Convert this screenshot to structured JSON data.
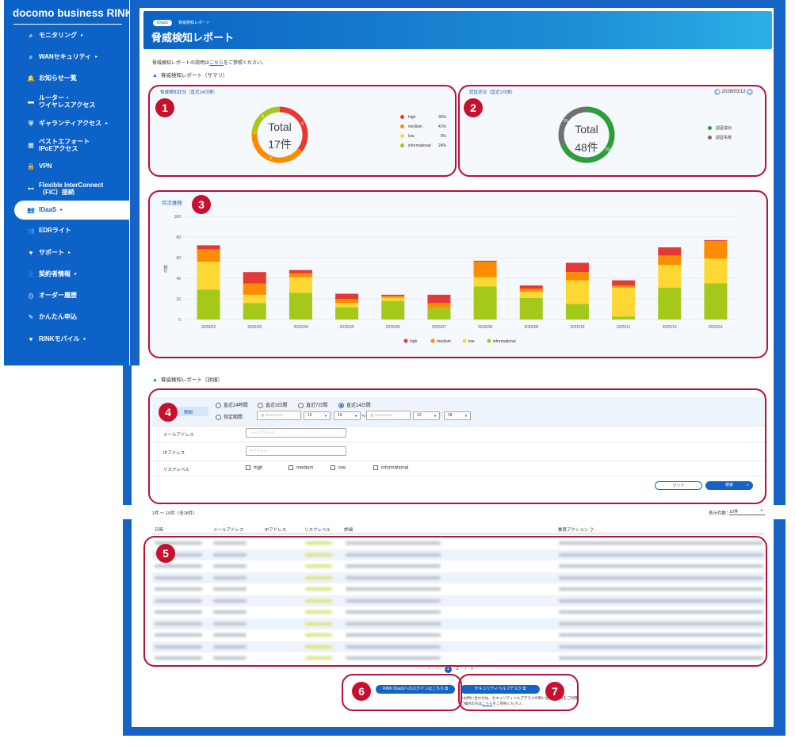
{
  "sidebar": {
    "brand": "docomo business RINK",
    "items": [
      {
        "icon": "search-icon",
        "glyph": "⌕",
        "label": "モニタリング",
        "arrow": "▸"
      },
      {
        "icon": "search-icon",
        "glyph": "⌕",
        "label": "WANセキュリティ",
        "arrow": "▸"
      },
      {
        "icon": "bell-icon",
        "glyph": "🔔",
        "label": "お知らせ一覧",
        "arrow": ""
      },
      {
        "icon": "router-icon",
        "glyph": "▬",
        "label": "ルーター・\nワイヤレスアクセス",
        "arrow": ""
      },
      {
        "icon": "shield-icon",
        "glyph": "⛨",
        "label": "ギャランティアクセス",
        "arrow": "▸"
      },
      {
        "icon": "network-icon",
        "glyph": "▦",
        "label": "ベストエフォート\nIPoEアクセス",
        "arrow": ""
      },
      {
        "icon": "lock-icon",
        "glyph": "🔒",
        "label": "VPN",
        "arrow": ""
      },
      {
        "icon": "connect-icon",
        "glyph": "⊷",
        "label": "Flexible InterConnect\n（FIC）接続",
        "arrow": ""
      },
      {
        "icon": "users-icon",
        "glyph": "👥",
        "label": "IDaaS",
        "arrow": "▸"
      },
      {
        "icon": "users-icon",
        "glyph": "👥",
        "label": "EDRライト",
        "arrow": ""
      },
      {
        "icon": "support-icon",
        "glyph": "♥",
        "label": "サポート",
        "arrow": "▸"
      },
      {
        "icon": "person-icon",
        "glyph": "👤",
        "label": "契約者情報",
        "arrow": "▸"
      },
      {
        "icon": "clock-icon",
        "glyph": "◷",
        "label": "オーダー履歴",
        "arrow": ""
      },
      {
        "icon": "edit-icon",
        "glyph": "✎",
        "label": "かんたん申込",
        "arrow": ""
      },
      {
        "icon": "mobile-icon",
        "glyph": "♥",
        "label": "RINKモバイル",
        "arrow": "▸"
      }
    ]
  },
  "header": {
    "chip": "IDaaS",
    "breadcrumb": "脅威検知レポート",
    "title": "脅威検知レポート"
  },
  "intro": {
    "prefix": "脅威検知レポートの説明は",
    "link": "こちら",
    "suffix": "をご参照ください。"
  },
  "summary": {
    "heading": "脅威検知レポート（サマリ）"
  },
  "card1": {
    "title": "脅威検知状況（直近14日間）",
    "total_label": "Total",
    "total_value": "17件",
    "legend": [
      {
        "name": "high",
        "pct": "35%",
        "color": "#e53935"
      },
      {
        "name": "medium",
        "pct": "41%",
        "color": "#fb8c00"
      },
      {
        "name": "low",
        "pct": "0%",
        "color": "#fdd835"
      },
      {
        "name": "informational",
        "pct": "24%",
        "color": "#a4c91a"
      }
    ],
    "segments": [
      6,
      7,
      0,
      4
    ],
    "labels": [
      "6",
      "7",
      "0",
      "4"
    ]
  },
  "card2": {
    "title": "認証状況（直近1日間）",
    "date": "2026/03/12",
    "total_label": "Total",
    "total_value": "48件",
    "legend": [
      {
        "name": "認証成功",
        "color": "#2e9e3a"
      },
      {
        "name": "認証失敗",
        "color": "#707070"
      }
    ],
    "segments": [
      33,
      15
    ],
    "labels": [
      "33",
      "15"
    ]
  },
  "chart_data": {
    "type": "bar",
    "title": "月次推移",
    "ylabel": "件数",
    "ylim": [
      0,
      100
    ],
    "yticks": [
      0,
      20,
      40,
      60,
      80,
      100
    ],
    "categories": [
      "2025/02",
      "2025/03",
      "2025/04",
      "2025/05",
      "2025/06",
      "2025/07",
      "2025/08",
      "2025/09",
      "2025/10",
      "2025/11",
      "2025/12",
      "2026/01"
    ],
    "series": [
      {
        "name": "informational",
        "color": "#a4c91a",
        "values": [
          29,
          16,
          26,
          12,
          18,
          11,
          32,
          21,
          15,
          3,
          31,
          35
        ]
      },
      {
        "name": "low",
        "color": "#fdd835",
        "values": [
          27,
          8,
          15,
          4,
          3,
          0,
          9,
          6,
          23,
          28,
          22,
          24
        ]
      },
      {
        "name": "medium",
        "color": "#fb8c00",
        "values": [
          12,
          11,
          4,
          4,
          2,
          5,
          15,
          3,
          8,
          2,
          9,
          17
        ]
      },
      {
        "name": "high",
        "color": "#e53935",
        "values": [
          4,
          11,
          3,
          5,
          1,
          8,
          1,
          3,
          9,
          5,
          8,
          1
        ]
      }
    ],
    "legend_order": [
      "high",
      "medium",
      "low",
      "informational"
    ]
  },
  "detail": {
    "heading": "脅威検知レポート（詳細）",
    "period_label": "期間",
    "radios": [
      "直近24時間",
      "直近3日間",
      "直近7日間",
      "直近14日間"
    ],
    "radio_custom": "指定期間",
    "date_from": "2026/01/28",
    "date_to": "2026/02/03",
    "hour1": "12",
    "min1": "19",
    "hour2": "12",
    "min2": "18",
    "tilde": "〜",
    "colon": ":",
    "email_label": "メールアドレス",
    "email_placeholder": "メールアドレス",
    "ip_label": "IPアドレス",
    "ip_placeholder": "IPアドレス",
    "risk_label": "リスクレベル",
    "risks": [
      "high",
      "medium",
      "low",
      "informational"
    ],
    "clear": "クリア",
    "search": "検索"
  },
  "table": {
    "count_text": "1件 〜 10件（全18件）",
    "per_page_label": "表示件数：",
    "per_page": "10件",
    "columns": [
      "日時",
      "メールアドレス",
      "IPアドレス",
      "リスクレベル",
      "詳細",
      "推奨アクション"
    ]
  },
  "pagination": {
    "first": "«",
    "prev": "‹",
    "page1": "1",
    "page2": "2",
    "next": "›",
    "last": "»"
  },
  "footer": {
    "login_button": "RINK IDaaSへのログインはこちら",
    "help_button": "セキュリティヘルプデスク",
    "help_line1": "※お問い合わせは、セキュリティヘルプデスクの問い合わせ窓口をご利用ください。",
    "help_line2_prefix": "ご検討の方は",
    "help_link": "こちら",
    "help_line2_suffix": "をご参照ください。"
  },
  "badges": [
    "1",
    "2",
    "3",
    "4",
    "5",
    "6",
    "7"
  ]
}
